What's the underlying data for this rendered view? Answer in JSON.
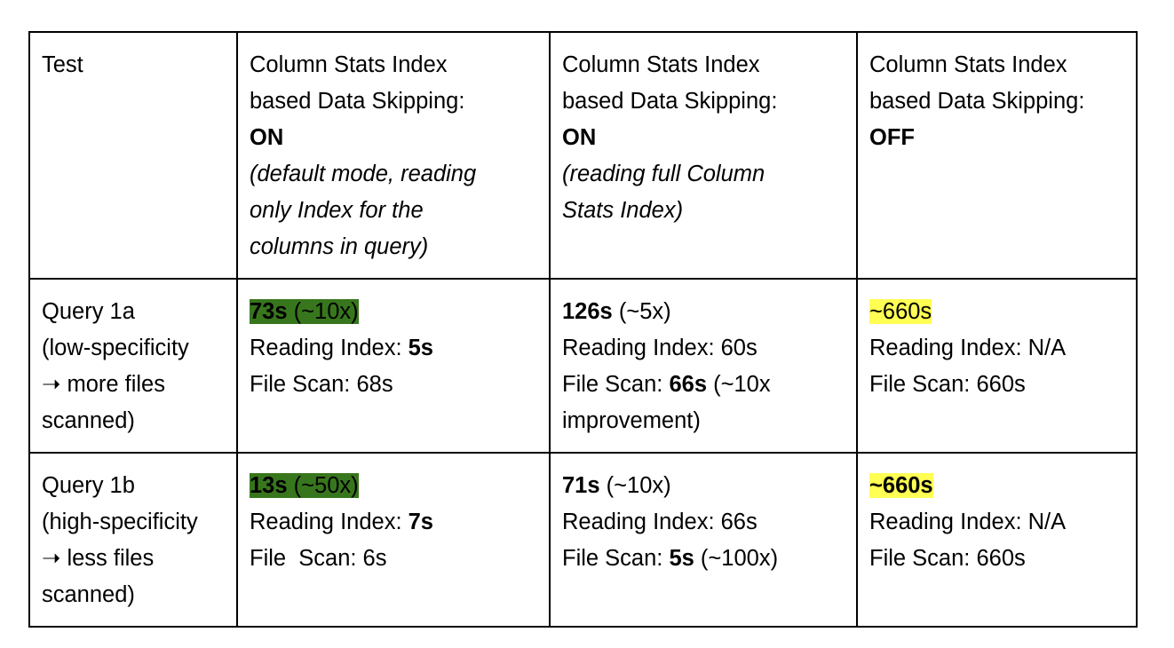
{
  "header": {
    "test": "Test",
    "col1": {
      "title_a": "Column Stats Index",
      "title_b": "based Data Skipping:",
      "state": "ON",
      "note_a": "(default mode, reading",
      "note_b": "only Index for the",
      "note_c": "columns in query)"
    },
    "col2": {
      "title_a": "Column Stats Index",
      "title_b": "based Data Skipping:",
      "state": "ON",
      "note_a": "(reading full Column",
      "note_b": "Stats Index)"
    },
    "col3": {
      "title_a": "Column Stats Index",
      "title_b": "based Data Skipping:",
      "state": "OFF"
    }
  },
  "rows": [
    {
      "test": {
        "a": "Query 1a",
        "b": "(low-specificity",
        "c": "➝ more files",
        "d": "scanned)"
      },
      "c1": {
        "total": "73s",
        "speedup": " (~10x)",
        "read_label": "Reading Index: ",
        "read_val": "5s",
        "scan": "File Scan: 68s"
      },
      "c2": {
        "total": "126s",
        "speedup": " (~5x)",
        "read": "Reading Index: 60s",
        "scan_label": "File Scan: ",
        "scan_val": "66s",
        "scan_note_a": " (~10x",
        "scan_note_b": "improvement)"
      },
      "c3": {
        "total": "~660s",
        "read": "Reading Index: N/A",
        "scan": "File Scan: 660s"
      }
    },
    {
      "test": {
        "a": "Query 1b",
        "b": "(high-specificity",
        "c": "➝ less files",
        "d": "scanned)"
      },
      "c1": {
        "total": "13s",
        "speedup": " (~50x)",
        "read_label": "Reading Index: ",
        "read_val": "7s",
        "scan": "File  Scan: 6s"
      },
      "c2": {
        "total": "71s",
        "speedup": " (~10x)",
        "read": "Reading Index: 66s",
        "scan_label": "File Scan: ",
        "scan_val": "5s",
        "scan_note": " (~100x)"
      },
      "c3": {
        "total": "~660s",
        "read": "Reading Index: N/A",
        "scan": "File Scan: 660s"
      }
    }
  ],
  "colors": {
    "highlight_green": "#38761d",
    "highlight_yellow": "#ffff54"
  }
}
